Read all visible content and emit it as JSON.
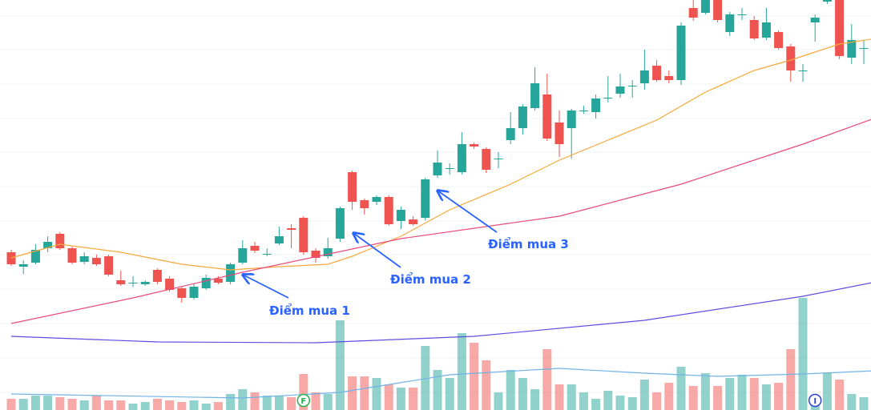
{
  "chart_data": {
    "type": "candlestick",
    "up_color": "#26a69a",
    "down_color": "#ef5350",
    "ylim": [
      0,
      512
    ],
    "volume_lim": [
      0,
      512
    ],
    "open": [
      197,
      179,
      184,
      202,
      220,
      202,
      185,
      190,
      192,
      162,
      159,
      157,
      175,
      164,
      152,
      140,
      152,
      164,
      160,
      184,
      205,
      195,
      208,
      227,
      240,
      199,
      192,
      214,
      297,
      262,
      260,
      266,
      236,
      238,
      240,
      293,
      302,
      297,
      332,
      326,
      314,
      337,
      352,
      377,
      394,
      359,
      352,
      374,
      372,
      390,
      395,
      404,
      408,
      430,
      417,
      412,
      502,
      496,
      512,
      472,
      494,
      487,
      465,
      472,
      454,
      424,
      484,
      510,
      512,
      440,
      452
    ],
    "high": [
      200,
      187,
      207,
      217,
      222,
      204,
      197,
      194,
      194,
      174,
      167,
      162,
      177,
      167,
      154,
      157,
      169,
      167,
      184,
      212,
      210,
      202,
      229,
      232,
      242,
      202,
      215,
      254,
      299,
      264,
      268,
      268,
      254,
      242,
      290,
      324,
      308,
      347,
      334,
      328,
      322,
      372,
      382,
      428,
      420,
      374,
      376,
      380,
      394,
      417,
      420,
      412,
      450,
      437,
      424,
      484,
      512,
      512,
      512,
      497,
      502,
      492,
      502,
      474,
      457,
      432,
      494,
      512,
      512,
      482,
      462
    ],
    "low": [
      180,
      170,
      182,
      197,
      200,
      182,
      182,
      180,
      167,
      155,
      154,
      155,
      157,
      148,
      134,
      138,
      150,
      157,
      157,
      182,
      196,
      192,
      206,
      202,
      194,
      184,
      189,
      210,
      250,
      244,
      256,
      230,
      226,
      230,
      237,
      290,
      294,
      294,
      326,
      296,
      302,
      332,
      344,
      374,
      336,
      316,
      314,
      370,
      364,
      384,
      390,
      390,
      400,
      410,
      408,
      406,
      486,
      494,
      484,
      467,
      487,
      462,
      462,
      450,
      410,
      410,
      460,
      507,
      438,
      432,
      432
    ],
    "close": [
      182,
      182,
      200,
      210,
      202,
      184,
      192,
      182,
      169,
      157,
      159,
      160,
      160,
      150,
      140,
      154,
      165,
      159,
      182,
      202,
      199,
      195,
      217,
      225,
      197,
      190,
      202,
      252,
      260,
      252,
      266,
      232,
      250,
      232,
      288,
      309,
      302,
      332,
      329,
      300,
      314,
      352,
      379,
      408,
      339,
      332,
      374,
      374,
      389,
      390,
      404,
      405,
      424,
      412,
      412,
      480,
      490,
      512,
      487,
      494,
      494,
      464,
      484,
      452,
      424,
      424,
      490,
      512,
      442,
      462,
      452
    ],
    "volume": [
      14,
      14,
      18,
      18,
      16,
      14,
      12,
      18,
      12,
      12,
      8,
      10,
      14,
      12,
      10,
      12,
      8,
      10,
      20,
      26,
      22,
      18,
      18,
      16,
      45,
      22,
      20,
      112,
      42,
      42,
      40,
      32,
      28,
      28,
      80,
      50,
      40,
      96,
      84,
      62,
      22,
      50,
      40,
      26,
      76,
      32,
      32,
      22,
      14,
      24,
      18,
      16,
      38,
      22,
      34,
      54,
      30,
      46,
      30,
      40,
      44,
      40,
      32,
      34,
      76,
      140,
      16,
      46,
      38,
      20,
      16
    ],
    "lines": [
      {
        "color": "#f7a83a",
        "x": [
          0,
          4,
          9,
          14,
          18,
          22,
          26,
          28,
          32,
          36,
          41,
          45,
          49,
          53,
          57,
          61,
          64,
          68,
          71
        ],
        "values": [
          190,
          207,
          197,
          182,
          175,
          179,
          182,
          192,
          217,
          250,
          282,
          312,
          337,
          362,
          397,
          424,
          437,
          457,
          464
        ]
      },
      {
        "color": "#e8497a",
        "x": [
          0,
          10,
          19,
          32,
          45,
          55,
          65,
          71
        ],
        "values": [
          108,
          140,
          172,
          214,
          242,
          282,
          332,
          365
        ]
      },
      {
        "color": "#5b4ee0",
        "x": [
          0,
          12,
          25,
          38,
          52,
          65,
          71
        ],
        "values": [
          92,
          85,
          84,
          92,
          112,
          142,
          160
        ]
      }
    ],
    "volume_line": {
      "color": "#6fb3e8",
      "x": [
        0,
        19,
        27,
        36,
        45,
        52,
        58,
        65,
        71
      ],
      "values": [
        20,
        15,
        22,
        44,
        52,
        46,
        42,
        45,
        49
      ]
    },
    "annotations": [
      {
        "text": "Điểm mua 1"
      },
      {
        "text": "Điểm mua 2"
      },
      {
        "text": "Điểm mua 3"
      }
    ],
    "markers": [
      {
        "label": "F",
        "x": 24,
        "color": "#22b14c"
      },
      {
        "label": "I",
        "x": 66,
        "color": "#2c3fd6"
      }
    ]
  }
}
